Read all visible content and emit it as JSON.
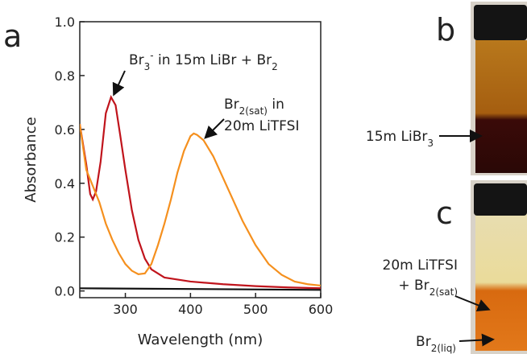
{
  "chart_data": {
    "type": "line",
    "xlabel": "Wavelength (nm)",
    "ylabel": "Absorbance",
    "xlim": [
      230,
      600
    ],
    "ylim": [
      -0.025,
      1.0
    ],
    "xticks": [
      300,
      400,
      500,
      600
    ],
    "yticks": [
      0.0,
      0.2,
      0.4,
      0.6,
      0.8,
      1.0
    ],
    "yticklabels_fmt": 1,
    "series": [
      {
        "color": "#c0141c",
        "x": [
          230,
          240,
          246,
          250,
          255,
          262,
          270,
          278,
          285,
          292,
          300,
          310,
          320,
          330,
          340,
          360,
          400,
          450,
          500,
          550,
          600
        ],
        "values": [
          0.62,
          0.47,
          0.36,
          0.34,
          0.37,
          0.48,
          0.66,
          0.72,
          0.69,
          0.58,
          0.45,
          0.3,
          0.19,
          0.12,
          0.08,
          0.05,
          0.035,
          0.025,
          0.018,
          0.013,
          0.01
        ]
      },
      {
        "color": "#f5901e",
        "x": [
          230,
          240,
          250,
          260,
          270,
          280,
          290,
          300,
          310,
          320,
          330,
          340,
          350,
          360,
          370,
          380,
          390,
          400,
          405,
          410,
          420,
          435,
          450,
          465,
          480,
          500,
          520,
          540,
          560,
          580,
          600
        ],
        "values": [
          0.62,
          0.45,
          0.39,
          0.33,
          0.25,
          0.19,
          0.14,
          0.1,
          0.075,
          0.062,
          0.065,
          0.1,
          0.17,
          0.25,
          0.34,
          0.44,
          0.52,
          0.575,
          0.585,
          0.58,
          0.56,
          0.5,
          0.42,
          0.34,
          0.26,
          0.17,
          0.1,
          0.06,
          0.035,
          0.025,
          0.02
        ]
      },
      {
        "color": "#111111",
        "x": [
          230,
          600
        ],
        "values": [
          0.01,
          0.004
        ]
      }
    ],
    "annotations": [
      {
        "runs": [
          {
            "text": "Br"
          },
          {
            "text": "3",
            "sub": true
          },
          {
            "text": "-",
            "sup": true
          },
          {
            "text": " in 15m LiBr + Br"
          },
          {
            "text": "2",
            "sub": true
          }
        ]
      },
      {
        "runs": [
          {
            "text": "Br"
          },
          {
            "text": "2(sat)",
            "sub": true
          },
          {
            "text": " in"
          }
        ]
      },
      {
        "runs": [
          {
            "text": "20m LiTFSI"
          }
        ]
      }
    ]
  },
  "panels": [
    "a",
    "b",
    "c"
  ],
  "photo_labels": [
    {
      "runs": [
        {
          "text": "15m LiBr"
        },
        {
          "text": "3",
          "sub": true
        }
      ]
    },
    {
      "runs": [
        {
          "text": "20m LiTFSI"
        }
      ]
    },
    {
      "runs": [
        {
          "text": "+ Br"
        },
        {
          "text": "2(sat)",
          "sub": true
        }
      ]
    },
    {
      "runs": [
        {
          "text": "Br"
        },
        {
          "text": "2(liq)",
          "sub": true
        }
      ]
    }
  ]
}
